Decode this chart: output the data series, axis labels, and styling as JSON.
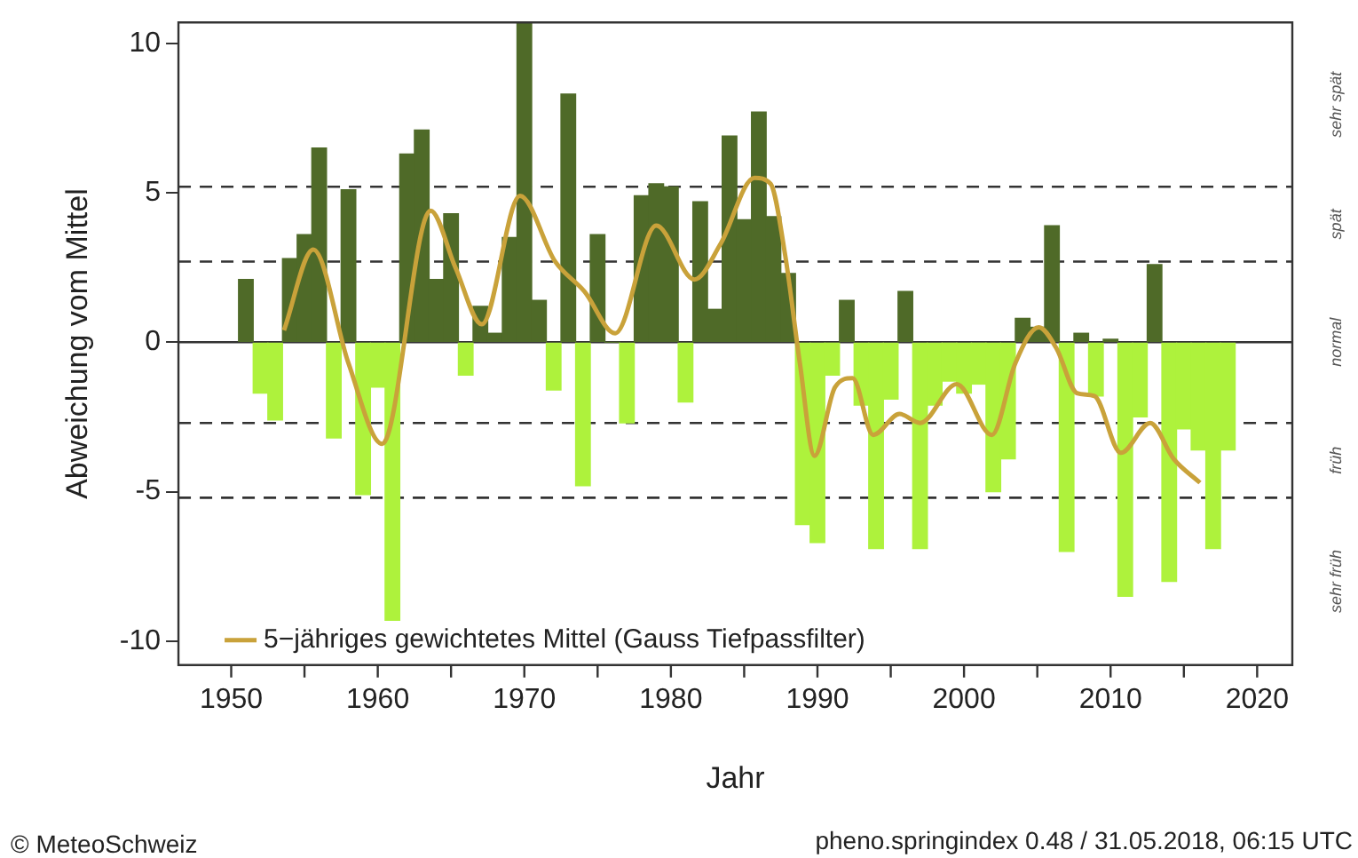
{
  "chart_data": {
    "type": "bar",
    "xlabel": "Jahr",
    "ylabel": "Abweichung vom Mittel",
    "x": [
      1951,
      1952,
      1953,
      1954,
      1955,
      1956,
      1957,
      1958,
      1959,
      1960,
      1961,
      1962,
      1963,
      1964,
      1965,
      1966,
      1967,
      1968,
      1969,
      1970,
      1971,
      1972,
      1973,
      1974,
      1975,
      1976,
      1977,
      1978,
      1979,
      1980,
      1981,
      1982,
      1983,
      1984,
      1985,
      1986,
      1987,
      1988,
      1989,
      1990,
      1991,
      1992,
      1993,
      1994,
      1995,
      1996,
      1997,
      1998,
      1999,
      2000,
      2001,
      2002,
      2003,
      2004,
      2005,
      2006,
      2007,
      2008,
      2009,
      2010,
      2011,
      2012,
      2013,
      2014,
      2015,
      2016,
      2017,
      2018
    ],
    "series": [
      {
        "values": [
          2.1,
          -1.7,
          -2.6,
          2.8,
          3.6,
          6.5,
          -3.2,
          5.1,
          -5.1,
          -1.5,
          -9.3,
          6.3,
          7.1,
          2.1,
          4.3,
          -1.1,
          1.2,
          0.3,
          3.5,
          10.7,
          1.4,
          -1.6,
          8.3,
          -4.8,
          3.6,
          0,
          -2.7,
          4.9,
          5.3,
          5.2,
          -2.0,
          4.7,
          1.1,
          6.9,
          4.1,
          7.7,
          4.2,
          2.3,
          -6.1,
          -6.7,
          -1.1,
          1.4,
          -2.1,
          -6.9,
          -1.9,
          1.7,
          -6.9,
          -2.1,
          -1.3,
          -1.7,
          -1.4,
          -5.0,
          -3.9,
          0.8,
          0.5,
          3.9,
          -7.0,
          0.3,
          -1.8,
          0.1,
          -8.5,
          -2.5,
          2.6,
          -8.0,
          -2.9,
          -3.6,
          -6.9,
          -3.6
        ],
        "colors": [
          "#4f6a28",
          "#aef23c",
          "#aef23c",
          "#4f6a28",
          "#4f6a28",
          "#4f6a28",
          "#aef23c",
          "#4f6a28",
          "#aef23c",
          "#aef23c",
          "#aef23c",
          "#4f6a28",
          "#4f6a28",
          "#4f6a28",
          "#4f6a28",
          "#aef23c",
          "#4f6a28",
          "#4f6a28",
          "#4f6a28",
          "#4f6a28",
          "#4f6a28",
          "#aef23c",
          "#4f6a28",
          "#aef23c",
          "#4f6a28",
          "#4f6a28",
          "#aef23c",
          "#4f6a28",
          "#4f6a28",
          "#4f6a28",
          "#aef23c",
          "#4f6a28",
          "#4f6a28",
          "#4f6a28",
          "#4f6a28",
          "#4f6a28",
          "#4f6a28",
          "#4f6a28",
          "#aef23c",
          "#aef23c",
          "#aef23c",
          "#4f6a28",
          "#aef23c",
          "#aef23c",
          "#aef23c",
          "#4f6a28",
          "#aef23c",
          "#aef23c",
          "#aef23c",
          "#aef23c",
          "#aef23c",
          "#aef23c",
          "#aef23c",
          "#4f6a28",
          "#4f6a28",
          "#4f6a28",
          "#aef23c",
          "#4f6a28",
          "#aef23c",
          "#4f6a28",
          "#aef23c",
          "#aef23c",
          "#4f6a28",
          "#aef23c",
          "#aef23c",
          "#aef23c",
          "#aef23c",
          "#aef23c"
        ]
      },
      {
        "type": "line",
        "name": "5−jähriges gewichtetes Mittel (Gauss Tiefpassfilter)",
        "color": "#c9a23a",
        "x": [
          1953.6,
          1955.6,
          1958,
          1960.3,
          1963.6,
          1965.3,
          1967.1,
          1969.7,
          1972.1,
          1974.1,
          1976.2,
          1979,
          1981.6,
          1983.4,
          1985.7,
          1986.8,
          1987.8,
          1988.8,
          1989.8,
          1991.2,
          1992.4,
          1993.8,
          1995.6,
          1997,
          1999.5,
          2001.9,
          2003.5,
          2005.1,
          2006.3,
          2007.7,
          2008.9,
          2010.7,
          2012.7,
          2014.3,
          2016.1
        ],
        "values": [
          0.4,
          3.1,
          -0.7,
          -3.4,
          4.4,
          2.5,
          0.6,
          4.9,
          2.7,
          1.7,
          0.3,
          3.9,
          2.1,
          3.3,
          5.5,
          5.3,
          2.9,
          -0.7,
          -3.8,
          -1.5,
          -1.2,
          -3.1,
          -2.4,
          -2.7,
          -1.4,
          -3.1,
          -0.7,
          0.5,
          -0.2,
          -1.7,
          -1.8,
          -3.7,
          -2.7,
          -3.9,
          -4.7
        ]
      }
    ],
    "xlim": [
      1946.4,
      2022.4
    ],
    "xticks": [
      1950,
      {
        "value": 1955,
        "label": null
      },
      1960,
      {
        "value": 1965,
        "label": null
      },
      1970,
      {
        "value": 1975,
        "label": null
      },
      1980,
      {
        "value": 1985,
        "label": null
      },
      1990,
      {
        "value": 1995,
        "label": null
      },
      2000,
      {
        "value": 2005,
        "label": null
      },
      2010,
      {
        "value": 2015,
        "label": null
      },
      2020
    ],
    "ylim": [
      -10.8,
      10.7
    ],
    "yticks": [
      -10,
      -5,
      0,
      5,
      10
    ],
    "ref_lines": [
      {
        "axis": "y",
        "value": 0,
        "line_style": "solid",
        "color": "#333333"
      },
      {
        "axis": "y",
        "value": 5.2,
        "line_style": "dashed",
        "color": "#333333"
      },
      {
        "axis": "y",
        "value": 2.7,
        "line_style": "dashed",
        "color": "#333333"
      },
      {
        "axis": "y",
        "value": -2.7,
        "line_style": "dashed",
        "color": "#333333"
      },
      {
        "axis": "y",
        "value": -5.2,
        "line_style": "dashed",
        "color": "#333333"
      }
    ],
    "annotations": [
      "sehr spät",
      "spät",
      "normal",
      "früh",
      "sehr früh",
      "© MeteoSchweiz",
      "pheno.springindex 0.48 / 31.05.2018, 06:15 UTC"
    ],
    "legend": "bottom left",
    "grid": false,
    "marker": "none",
    "line_style": "solid"
  }
}
